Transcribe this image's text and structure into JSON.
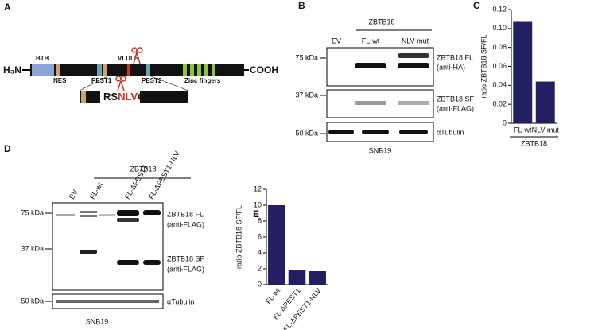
{
  "panels": [
    "A",
    "B",
    "C",
    "D",
    "E"
  ],
  "diagram": {
    "n_term": "H₃N",
    "c_term": "COOH",
    "domains": [
      "BTB",
      "NES",
      "PEST1",
      "VLDLS",
      "PEST2",
      "Zinc fingers"
    ],
    "motif": [
      "RS",
      "NLV",
      "QV"
    ]
  },
  "blot_b": {
    "group": "ZBTB18",
    "lanes": [
      "EV",
      "FL-wt",
      "NLV-mut"
    ],
    "markers": [
      "75 kDa",
      "37 kDa",
      "50 kDa"
    ],
    "bands": [
      [
        "ZBTB18 FL",
        "(anti-HA)"
      ],
      [
        "ZBTB18 SF",
        "(anti-FLAG)"
      ],
      [
        "αTubulin"
      ]
    ],
    "cell": "SNB19"
  },
  "blot_d": {
    "group": "ZBTB18",
    "lanes": [
      "EV",
      "FL-wt",
      "FL-ΔPEST1",
      "FL-ΔPEST1-NLV"
    ],
    "markers": [
      "75 kDa",
      "37 kDa",
      "50 kDa"
    ],
    "bands": [
      [
        "ZBTB18 FL",
        "(anti-FLAG)"
      ],
      [
        "ZBTB18 SF",
        "(anti-FLAG)"
      ],
      [
        "αTubulin"
      ]
    ],
    "cell": "SNB19"
  },
  "chart_data": [
    {
      "type": "bar",
      "ylabel": "ratio ZBTB18 SF/FL",
      "xlabel": "ZBTB18",
      "categories": [
        "FL-wt",
        "NLV-mut"
      ],
      "values": [
        0.107,
        0.044
      ],
      "color": "#231f63",
      "ylim": [
        0,
        0.12
      ],
      "yticks": [
        0,
        0.02,
        0.04,
        0.06,
        0.08,
        {
          "value": 0.1,
          "label": "0.10"
        },
        0.12
      ]
    },
    {
      "type": "bar",
      "ylabel": "ratio ZBTB18 SF/FL",
      "categories": [
        "FL-wt",
        "FL-ΔPEST1",
        "FL-ΔPEST1-NLV"
      ],
      "values": [
        10,
        1.8,
        1.7
      ],
      "color": "#231f63",
      "ylim": [
        0,
        12
      ],
      "yticks": [
        0,
        2,
        4,
        6,
        8,
        10,
        12
      ]
    }
  ]
}
